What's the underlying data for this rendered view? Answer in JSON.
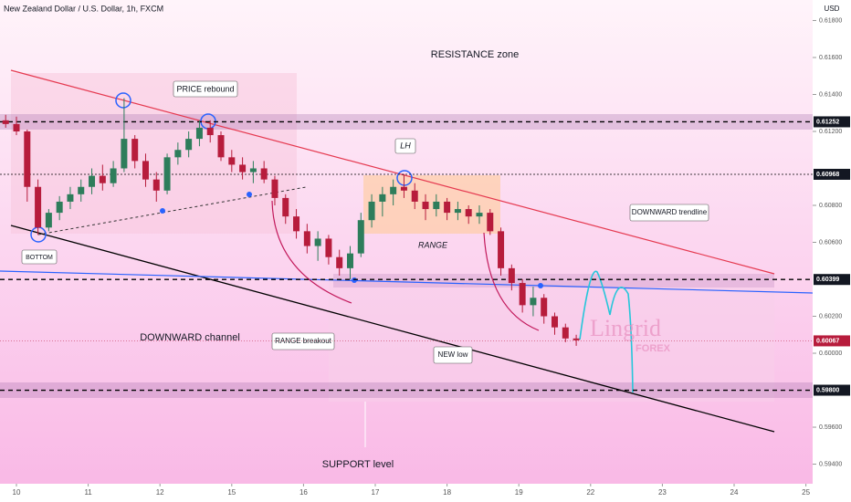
{
  "chart_data": {
    "type": "candlestick",
    "title": "New Zealand Dollar / U.S. Dollar, 1h, FXCM",
    "currency": "USD",
    "colors": {
      "up": "#2e7d5b",
      "down": "#b71c3c"
    },
    "annotations": {
      "resistance": "RESISTANCE zone",
      "rebound": "PRICE rebound",
      "lh": "LH",
      "range": "RANGE",
      "bottom": "BOTTOM",
      "trendline": "DOWNWARD trendline",
      "channel": "DOWNWARD channel",
      "breakout": "RANGE breakout",
      "newlow": "NEW low",
      "support": "SUPPORT level",
      "brand": "Lingrid",
      "brand2": "FOREX"
    },
    "ylim": [
      0.59294,
      0.61911
    ],
    "yticks": [
      {
        "value": 0.618,
        "label": "0.61800"
      },
      {
        "value": 0.616,
        "label": "0.61600"
      },
      {
        "value": 0.614,
        "label": "0.61400"
      },
      {
        "value": 0.612,
        "label": "0.61200"
      },
      {
        "value": 0.608,
        "label": "0.60800"
      },
      {
        "value": 0.606,
        "label": "0.60600"
      },
      {
        "value": 0.602,
        "label": "0.60200"
      },
      {
        "value": 0.6,
        "label": "0.60000"
      },
      {
        "value": 0.596,
        "label": "0.59600"
      },
      {
        "value": 0.594,
        "label": "0.59400"
      }
    ],
    "levels": [
      {
        "value": 0.61252,
        "label": "0.61252"
      },
      {
        "value": 0.60968,
        "label": "0.60968"
      },
      {
        "value": 0.60399,
        "label": "0.60399"
      },
      {
        "value": 0.598,
        "label": "0.59800"
      }
    ],
    "last_price": {
      "value": 0.60067,
      "label": "0.60067"
    },
    "xlim": [
      -0.229,
      11.094
    ],
    "xticks": [
      {
        "value": 0,
        "label": "10"
      },
      {
        "value": 1,
        "label": "11"
      },
      {
        "value": 2,
        "label": "12"
      },
      {
        "value": 3,
        "label": "15"
      },
      {
        "value": 4,
        "label": "16"
      },
      {
        "value": 5,
        "label": "17"
      },
      {
        "value": 6,
        "label": "18"
      },
      {
        "value": 7,
        "label": "19"
      },
      {
        "value": 8,
        "label": "22"
      },
      {
        "value": 9,
        "label": "23"
      },
      {
        "value": 10,
        "label": "24"
      },
      {
        "value": 11,
        "label": "25"
      }
    ],
    "x": [
      -0.15,
      0,
      0.15,
      0.3,
      0.45,
      0.6,
      0.75,
      0.9,
      1.05,
      1.2,
      1.35,
      1.5,
      1.65,
      1.8,
      1.95,
      2.1,
      2.25,
      2.4,
      2.55,
      2.7,
      2.85,
      3,
      3.15,
      3.3,
      3.45,
      3.6,
      3.75,
      3.9,
      4.05,
      4.2,
      4.35,
      4.5,
      4.65,
      4.8,
      4.95,
      5.1,
      5.25,
      5.4,
      5.55,
      5.7,
      5.85,
      6,
      6.15,
      6.3,
      6.45,
      6.6,
      6.75,
      6.9,
      7.05,
      7.2,
      7.35,
      7.5,
      7.65,
      7.8
    ],
    "candles": [
      [
        0.6126,
        0.6129,
        0.6122,
        0.6124
      ],
      [
        0.6124,
        0.6128,
        0.6118,
        0.612
      ],
      [
        0.612,
        0.6121,
        0.6082,
        0.609
      ],
      [
        0.609,
        0.6094,
        0.6064,
        0.6068
      ],
      [
        0.6068,
        0.6078,
        0.6066,
        0.6076
      ],
      [
        0.6076,
        0.6085,
        0.6072,
        0.6082
      ],
      [
        0.6082,
        0.609,
        0.6078,
        0.6086
      ],
      [
        0.6086,
        0.6094,
        0.6082,
        0.609
      ],
      [
        0.609,
        0.61,
        0.6086,
        0.6096
      ],
      [
        0.6096,
        0.6102,
        0.6088,
        0.6092
      ],
      [
        0.6092,
        0.6104,
        0.609,
        0.61
      ],
      [
        0.61,
        0.6138,
        0.6098,
        0.6116
      ],
      [
        0.6116,
        0.6118,
        0.61,
        0.6104
      ],
      [
        0.6104,
        0.6108,
        0.609,
        0.6094
      ],
      [
        0.6094,
        0.6098,
        0.6082,
        0.6088
      ],
      [
        0.6088,
        0.6108,
        0.6086,
        0.6106
      ],
      [
        0.6106,
        0.6114,
        0.6102,
        0.611
      ],
      [
        0.611,
        0.612,
        0.6106,
        0.6116
      ],
      [
        0.6116,
        0.6126,
        0.6112,
        0.6122
      ],
      [
        0.6122,
        0.6126,
        0.6114,
        0.6118
      ],
      [
        0.6118,
        0.612,
        0.6104,
        0.6106
      ],
      [
        0.6106,
        0.611,
        0.6098,
        0.6102
      ],
      [
        0.6102,
        0.6106,
        0.6094,
        0.6098
      ],
      [
        0.6098,
        0.6104,
        0.6092,
        0.61
      ],
      [
        0.61,
        0.6104,
        0.6092,
        0.6094
      ],
      [
        0.6094,
        0.6096,
        0.608,
        0.6084
      ],
      [
        0.6084,
        0.6086,
        0.607,
        0.6074
      ],
      [
        0.6074,
        0.6078,
        0.6062,
        0.6066
      ],
      [
        0.6066,
        0.607,
        0.6054,
        0.6058
      ],
      [
        0.6058,
        0.6066,
        0.605,
        0.6062
      ],
      [
        0.6062,
        0.6064,
        0.6048,
        0.6052
      ],
      [
        0.6052,
        0.6056,
        0.6042,
        0.6046
      ],
      [
        0.6046,
        0.6058,
        0.604,
        0.6054
      ],
      [
        0.6054,
        0.6076,
        0.6052,
        0.6072
      ],
      [
        0.6072,
        0.6086,
        0.6068,
        0.6082
      ],
      [
        0.6082,
        0.609,
        0.6074,
        0.6086
      ],
      [
        0.6086,
        0.6094,
        0.608,
        0.609
      ],
      [
        0.609,
        0.6097,
        0.6084,
        0.6088
      ],
      [
        0.6088,
        0.6092,
        0.6078,
        0.6082
      ],
      [
        0.6082,
        0.6086,
        0.6072,
        0.6078
      ],
      [
        0.6078,
        0.6086,
        0.6074,
        0.6082
      ],
      [
        0.6082,
        0.6084,
        0.6072,
        0.6076
      ],
      [
        0.6076,
        0.6082,
        0.6072,
        0.6078
      ],
      [
        0.6078,
        0.608,
        0.607,
        0.6074
      ],
      [
        0.6074,
        0.608,
        0.607,
        0.6076
      ],
      [
        0.6076,
        0.6078,
        0.6064,
        0.6066
      ],
      [
        0.6066,
        0.6068,
        0.6042,
        0.6046
      ],
      [
        0.6046,
        0.6048,
        0.6034,
        0.6038
      ],
      [
        0.6038,
        0.604,
        0.6022,
        0.6026
      ],
      [
        0.6026,
        0.6036,
        0.602,
        0.603
      ],
      [
        0.603,
        0.6032,
        0.6016,
        0.602
      ],
      [
        0.602,
        0.6022,
        0.601,
        0.6014
      ],
      [
        0.6014,
        0.6016,
        0.6006,
        0.6008
      ],
      [
        0.6008,
        0.601,
        0.6004,
        0.6007
      ]
    ]
  }
}
